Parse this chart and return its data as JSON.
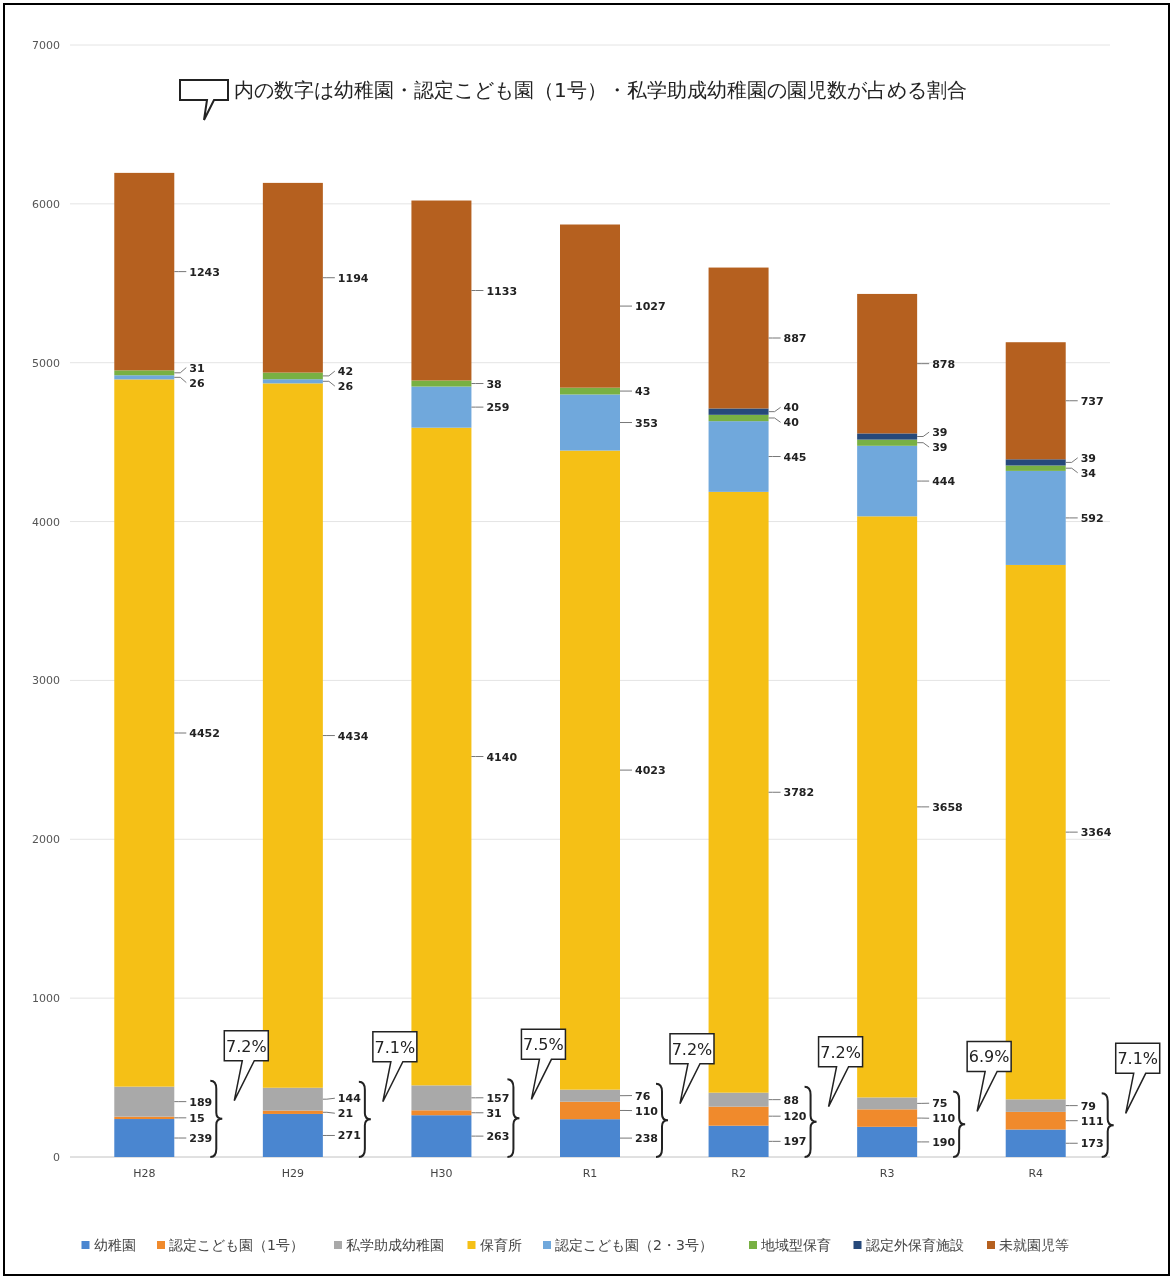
{
  "chart_data": {
    "type": "bar",
    "stacked": true,
    "categories": [
      "H28",
      "H29",
      "H30",
      "R1",
      "R2",
      "R3",
      "R4"
    ],
    "series": [
      {
        "name": "幼稚園",
        "color": "#4a86d0",
        "values": [
          239,
          271,
          263,
          238,
          197,
          190,
          173
        ]
      },
      {
        "name": "認定こども園（1号）",
        "color": "#f08a2c",
        "values": [
          15,
          21,
          31,
          110,
          120,
          110,
          111
        ]
      },
      {
        "name": "私学助成幼稚園",
        "color": "#a9a9a9",
        "values": [
          189,
          144,
          157,
          76,
          88,
          75,
          79
        ]
      },
      {
        "name": "保育所",
        "color": "#f5c016",
        "values": [
          4452,
          4434,
          4140,
          4023,
          3782,
          3658,
          3364
        ]
      },
      {
        "name": "認定こども園（2・3号）",
        "color": "#70a8dc",
        "values": [
          26,
          26,
          259,
          353,
          445,
          444,
          592
        ]
      },
      {
        "name": "地域型保育",
        "color": "#78b043",
        "values": [
          31,
          42,
          38,
          43,
          40,
          39,
          34
        ]
      },
      {
        "name": "認定外保育施設",
        "color": "#26497a",
        "values": [
          null,
          null,
          null,
          null,
          40,
          39,
          39
        ]
      },
      {
        "name": "未就園児等",
        "color": "#b5601f",
        "values": [
          1243,
          1194,
          1133,
          1027,
          887,
          878,
          737
        ]
      }
    ],
    "ylim": [
      0,
      7000
    ],
    "yticks": [
      0,
      1000,
      2000,
      3000,
      4000,
      5000,
      6000,
      7000
    ],
    "grid": "y",
    "legend": "bottom",
    "data_labels": true,
    "annotations": [
      "内の数字は幼稚園・認定こども園（1号）・私学助成幼稚園の園児数が占める割合",
      "7.2%",
      "7.1%",
      "7.5%",
      "7.2%",
      "7.2%",
      "6.9%",
      "7.1%"
    ]
  }
}
